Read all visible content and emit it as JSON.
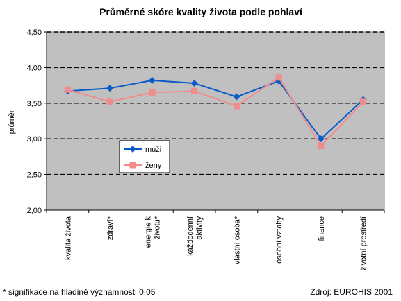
{
  "chart_data": {
    "type": "line",
    "title": "Průměrné skóre kvality života podle pohlaví",
    "ylabel": "průměr",
    "xlabel": "",
    "ylim": [
      2.0,
      4.5
    ],
    "yticks": [
      "2,00",
      "2,50",
      "3,00",
      "3,50",
      "4,00",
      "4,50"
    ],
    "categories": [
      [
        "kvalita života"
      ],
      [
        "zdraví*"
      ],
      [
        "energie k",
        "životu*"
      ],
      [
        "každodenní",
        "aktivity"
      ],
      [
        "vlastní osoba*"
      ],
      [
        "osobní vztahy"
      ],
      [
        "finance"
      ],
      [
        "životní prostředí"
      ]
    ],
    "series": [
      {
        "name": "muži",
        "color": "#0a5ac8",
        "marker": "diamond",
        "values": [
          3.67,
          3.71,
          3.82,
          3.78,
          3.59,
          3.81,
          3.0,
          3.55
        ]
      },
      {
        "name": "ženy",
        "color": "#f08c8c",
        "marker": "square",
        "values": [
          3.69,
          3.52,
          3.65,
          3.67,
          3.46,
          3.86,
          2.9,
          3.52
        ]
      }
    ],
    "grid": true,
    "plot_background": "#c0c0c0",
    "legend_position": "inside-left"
  },
  "footer": {
    "note": "* signifikace na hladině významnosti 0,05",
    "source": "Zdroj: EUROHIS 2001"
  }
}
